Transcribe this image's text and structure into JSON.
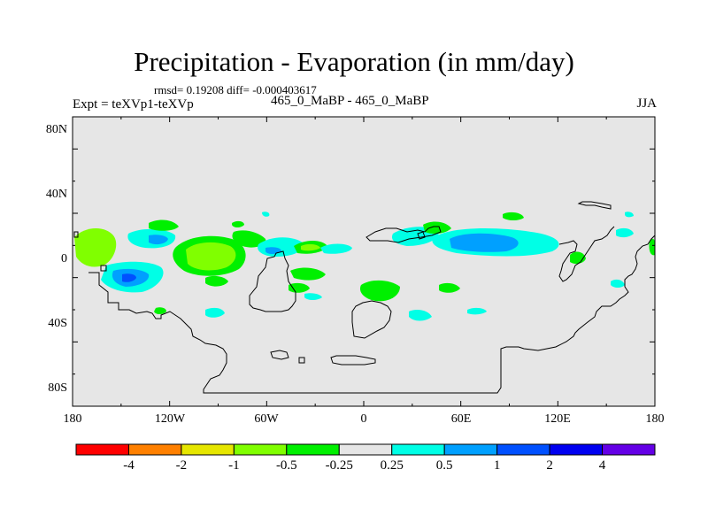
{
  "title": "Precipitation - Evaporation (in mm/day)",
  "stats": "rmsd= 0.19208 diff= -0.000403617",
  "left_label": "Expt = teXVp1-teXVp",
  "center_label": "465_0_MaBP - 465_0_MaBP",
  "right_label": "JJA",
  "lat_ticks": [
    "80N",
    "40N",
    "0",
    "40S",
    "80S"
  ],
  "lon_ticks": [
    "180",
    "120W",
    "60W",
    "0",
    "60E",
    "120E",
    "180"
  ],
  "colorbar": {
    "colors": [
      "#ff0000",
      "#ff8000",
      "#e6e600",
      "#80ff00",
      "#00f000",
      "#e6e6e6",
      "#00ffe6",
      "#00a0ff",
      "#0050ff",
      "#0000f0",
      "#6400e6"
    ],
    "labels": [
      "-4",
      "-2",
      "-1",
      "-0.5",
      "-0.25",
      "0.25",
      "0.5",
      "1",
      "2",
      "4"
    ]
  },
  "background_color": "#e6e6e6"
}
